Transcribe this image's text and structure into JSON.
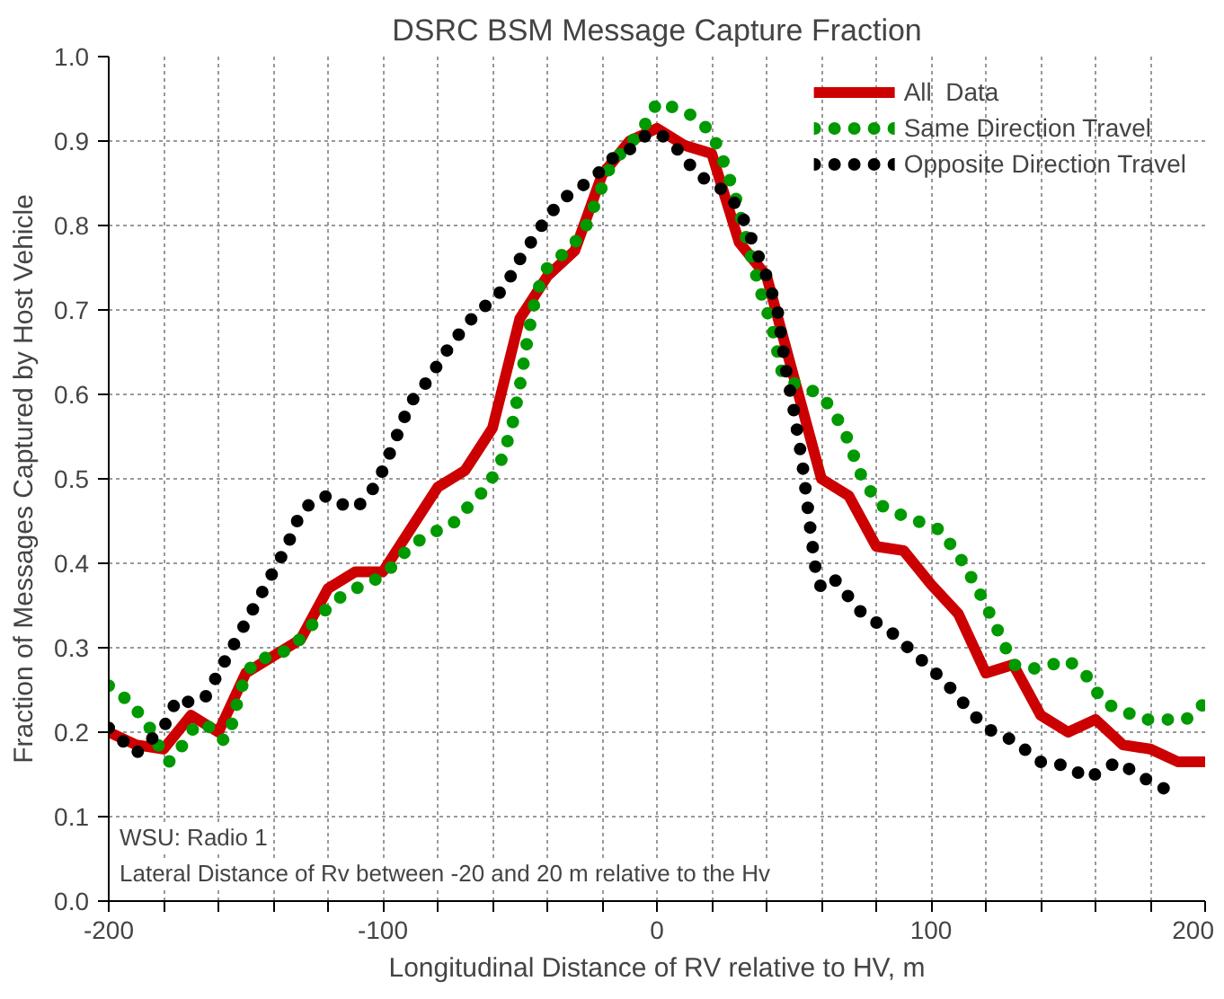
{
  "chart_data": {
    "type": "line",
    "title": "DSRC BSM Message Capture Fraction",
    "xlabel": "Longitudinal Distance of RV relative to HV, m",
    "ylabel": "Fraction of Messages Captured by Host Vehicle",
    "xlim": [
      -200,
      200
    ],
    "ylim": [
      0,
      1
    ],
    "xticks": [
      -200,
      {
        "value": -180,
        "label": null
      },
      {
        "value": -160,
        "label": null
      },
      {
        "value": -140,
        "label": null
      },
      {
        "value": -120,
        "label": null
      },
      -100,
      {
        "value": -80,
        "label": null
      },
      {
        "value": -60,
        "label": null
      },
      {
        "value": -40,
        "label": null
      },
      {
        "value": -20,
        "label": null
      },
      0,
      {
        "value": 20,
        "label": null
      },
      {
        "value": 40,
        "label": null
      },
      {
        "value": 60,
        "label": null
      },
      {
        "value": 80,
        "label": null
      },
      100,
      {
        "value": 120,
        "label": null
      },
      {
        "value": 140,
        "label": null
      },
      {
        "value": 160,
        "label": null
      },
      {
        "value": 180,
        "label": null
      },
      200
    ],
    "yticks": [
      {
        "value": 0,
        "label": "0.0"
      },
      0.1,
      0.2,
      0.3,
      0.4,
      0.5,
      0.6,
      0.7,
      0.8,
      0.9,
      {
        "value": 1,
        "label": "1.0"
      }
    ],
    "grid": true,
    "legend": "top right",
    "annotations": [
      "WSU: Radio 1",
      "Lateral Distance of Rv between -20 and 20 m relative to the Hv"
    ],
    "series": [
      {
        "name": "All  Data",
        "color": "#cc0000",
        "line_style": "solid",
        "x": [
          -200,
          -190,
          -180,
          -170,
          -160,
          -150,
          -140,
          -130,
          -120,
          -110,
          -100,
          -90,
          -80,
          -70,
          -60,
          -50,
          -40,
          -30,
          -20,
          -10,
          0,
          10,
          20,
          30,
          40,
          50,
          60,
          70,
          80,
          90,
          100,
          110,
          120,
          130,
          140,
          150,
          160,
          170,
          180,
          190,
          200
        ],
        "values": [
          0.2,
          0.185,
          0.18,
          0.22,
          0.2,
          0.27,
          0.29,
          0.31,
          0.37,
          0.39,
          0.39,
          0.44,
          0.49,
          0.51,
          0.56,
          0.69,
          0.74,
          0.77,
          0.86,
          0.9,
          0.915,
          0.895,
          0.885,
          0.78,
          0.74,
          0.62,
          0.5,
          0.48,
          0.42,
          0.415,
          0.375,
          0.34,
          0.27,
          0.28,
          0.22,
          0.2,
          0.215,
          0.185,
          0.18,
          0.165,
          0.165
        ]
      },
      {
        "name": "Same Direction Travel",
        "color": "#009900",
        "line_style": "dotted",
        "x": [
          -200,
          -192,
          -185,
          -182,
          -178,
          -174,
          -168,
          -162,
          -158,
          -155,
          -152,
          -147,
          -140,
          -133,
          -125,
          -118,
          -110,
          -103,
          -97,
          -90,
          -83,
          -75,
          -68,
          -62,
          -57,
          -53,
          -50,
          -47,
          -44,
          -40,
          -33,
          -27,
          -22,
          -17,
          -12,
          -6,
          0,
          6,
          13,
          20,
          25,
          29,
          33,
          38,
          42,
          46,
          52,
          60,
          68,
          75,
          81,
          87,
          95,
          103,
          110,
          117,
          123,
          130,
          137,
          144,
          150,
          156,
          163,
          170,
          178,
          185,
          193,
          200
        ],
        "values": [
          0.255,
          0.235,
          0.205,
          0.185,
          0.165,
          0.18,
          0.21,
          0.205,
          0.19,
          0.21,
          0.25,
          0.285,
          0.29,
          0.3,
          0.33,
          0.355,
          0.37,
          0.38,
          0.395,
          0.42,
          0.435,
          0.445,
          0.47,
          0.49,
          0.52,
          0.56,
          0.61,
          0.67,
          0.72,
          0.75,
          0.77,
          0.79,
          0.83,
          0.87,
          0.89,
          0.91,
          0.945,
          0.94,
          0.93,
          0.91,
          0.87,
          0.83,
          0.78,
          0.72,
          0.68,
          0.62,
          0.61,
          0.6,
          0.56,
          0.5,
          0.47,
          0.46,
          0.45,
          0.44,
          0.41,
          0.37,
          0.33,
          0.28,
          0.275,
          0.28,
          0.285,
          0.27,
          0.235,
          0.225,
          0.215,
          0.215,
          0.215,
          0.235
        ]
      },
      {
        "name": "Opposite Direction Travel",
        "color": "#000000",
        "line_style": "dotted",
        "x": [
          -200,
          -190,
          -185,
          -180,
          -175,
          -170,
          -165,
          -160,
          -155,
          -150,
          -145,
          -140,
          -135,
          -130,
          -125,
          -120,
          -115,
          -110,
          -105,
          -100,
          -95,
          -90,
          -85,
          -80,
          -75,
          -65,
          -60,
          -55,
          -50,
          -42,
          -35,
          -28,
          -22,
          -16,
          -10,
          -5,
          0,
          5,
          10,
          15,
          20,
          25,
          30,
          35,
          40,
          44,
          47,
          50,
          53,
          56,
          58,
          60,
          65,
          70,
          75,
          85,
          95,
          105,
          113,
          120,
          130,
          140,
          150,
          157,
          168,
          178,
          190
        ],
        "values": [
          0.205,
          0.175,
          0.19,
          0.205,
          0.24,
          0.235,
          0.24,
          0.27,
          0.3,
          0.33,
          0.36,
          0.39,
          0.42,
          0.46,
          0.475,
          0.48,
          0.47,
          0.465,
          0.48,
          0.51,
          0.55,
          0.59,
          0.61,
          0.635,
          0.66,
          0.7,
          0.71,
          0.73,
          0.76,
          0.8,
          0.83,
          0.845,
          0.86,
          0.88,
          0.89,
          0.905,
          0.91,
          0.9,
          0.88,
          0.86,
          0.85,
          0.84,
          0.82,
          0.78,
          0.74,
          0.7,
          0.63,
          0.58,
          0.52,
          0.44,
          0.39,
          0.37,
          0.38,
          0.36,
          0.34,
          0.32,
          0.29,
          0.26,
          0.23,
          0.205,
          0.19,
          0.165,
          0.16,
          0.145,
          0.165,
          0.145,
          0.125
        ]
      }
    ]
  }
}
